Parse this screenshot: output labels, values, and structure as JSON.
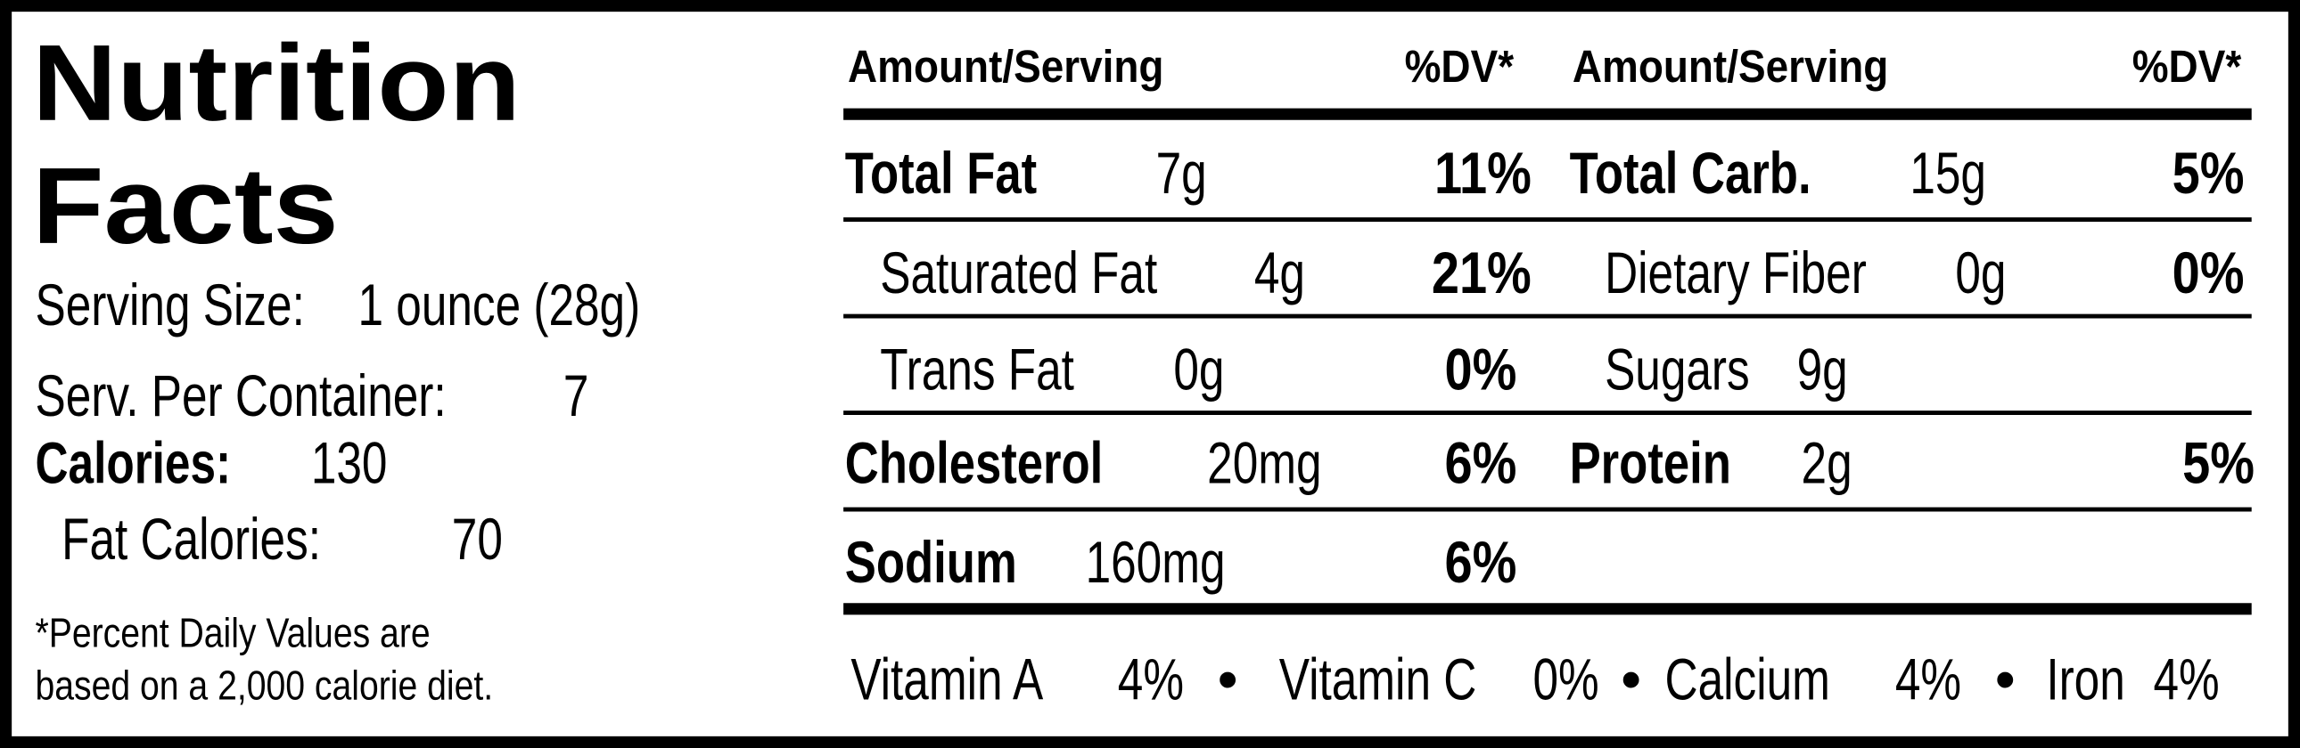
{
  "header": {
    "title_line1": "Nutrition",
    "title_line2": "Facts"
  },
  "serving": {
    "size_label": "Serving Size:",
    "size_value": "1 ounce (28g)",
    "container_label": "Serv. Per Container:",
    "container_value": "7",
    "calories_label": "Calories:",
    "calories_value": "130",
    "fat_calories_label": "Fat Calories:",
    "fat_calories_value": "70"
  },
  "footnote": [
    "*Percent Daily Values are",
    "based on a 2,000 calorie diet."
  ],
  "columns_header": [
    "Amount/Serving",
    "%DV*",
    "Amount/Serving",
    "%DV*"
  ],
  "nutrients_left": [
    {
      "name": "Total Fat",
      "amount": "7g",
      "dv": "11%",
      "bold": true
    },
    {
      "name": "Saturated Fat",
      "amount": "4g",
      "dv": "21%",
      "bold": false
    },
    {
      "name": "Trans Fat",
      "amount": "0g",
      "dv": "0%",
      "bold": false
    },
    {
      "name": "Cholesterol",
      "amount": "20mg",
      "dv": "6%",
      "bold": true
    },
    {
      "name": "Sodium",
      "amount": "160mg",
      "dv": "6%",
      "bold": true
    }
  ],
  "nutrients_right": [
    {
      "name": "Total Carb.",
      "amount": "15g",
      "dv": "5%",
      "bold": true
    },
    {
      "name": "Dietary Fiber",
      "amount": "0g",
      "dv": "0%",
      "bold": false
    },
    {
      "name": "Sugars",
      "amount": "9g",
      "bold": false
    },
    {
      "name": "Protein",
      "amount": "2g",
      "dv": "5%",
      "bold": true
    }
  ],
  "vitamins": [
    {
      "name": "Vitamin A",
      "value": "4%"
    },
    {
      "name": "Vitamin C",
      "value": "0%"
    },
    {
      "name": "Calcium",
      "value": "4%"
    },
    {
      "name": "Iron",
      "value": "4%"
    }
  ],
  "separator": "•"
}
